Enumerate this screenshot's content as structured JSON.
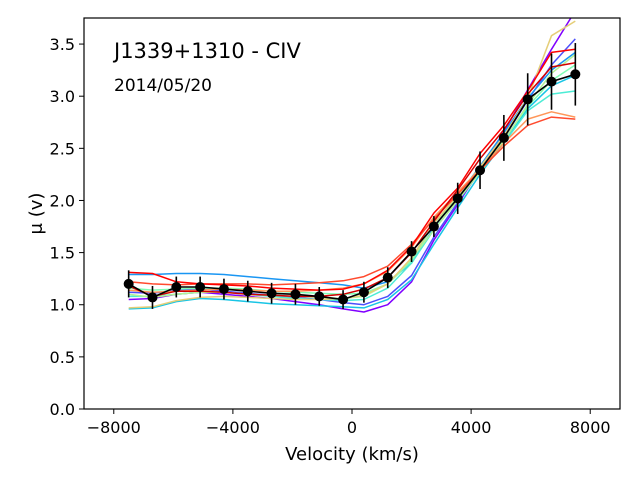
{
  "chart_data": {
    "type": "line",
    "title": "J1339+1310 - CIV",
    "subtitle": "2014/05/20",
    "xlabel": "Velocity (km/s)",
    "ylabel": "μ (v)",
    "xlim": [
      -9000,
      9000
    ],
    "ylim": [
      0.0,
      3.75
    ],
    "xticks": [
      -8000,
      -4000,
      0,
      4000,
      8000
    ],
    "xtick_labels": [
      "−8000",
      "−4000",
      "0",
      "4000",
      "8000"
    ],
    "yticks": [
      0.0,
      0.5,
      1.0,
      1.5,
      2.0,
      2.5,
      3.0,
      3.5
    ],
    "ytick_labels": [
      "0.0",
      "0.5",
      "1.0",
      "1.5",
      "2.0",
      "2.5",
      "3.0",
      "3.5"
    ],
    "grid": false,
    "colors": {
      "mean": "#000000",
      "palette": [
        "#8000ff",
        "#4b4ffc",
        "#1996f3",
        "#18c5e5",
        "#4cecd5",
        "#80feb3",
        "#b3f196",
        "#e5ce78",
        "#ff9659",
        "#ff4a2e",
        "#ff0000",
        "#d20000"
      ]
    },
    "x": [
      -7500,
      -6700,
      -5900,
      -5100,
      -4300,
      -3500,
      -2700,
      -1900,
      -1100,
      -300,
      400,
      1200,
      2000,
      2750,
      3550,
      4300,
      5100,
      5900,
      6700,
      7500
    ],
    "mean": {
      "values": [
        1.2,
        1.07,
        1.17,
        1.17,
        1.15,
        1.13,
        1.11,
        1.1,
        1.08,
        1.05,
        1.12,
        1.26,
        1.51,
        1.75,
        2.02,
        2.29,
        2.6,
        2.97,
        3.14,
        3.21
      ],
      "errors": [
        0.13,
        0.11,
        0.1,
        0.1,
        0.1,
        0.1,
        0.1,
        0.1,
        0.09,
        0.09,
        0.1,
        0.1,
        0.1,
        0.1,
        0.15,
        0.18,
        0.22,
        0.25,
        0.27,
        0.3
      ]
    },
    "series": [
      {
        "values": [
          1.05,
          1.06,
          1.1,
          1.12,
          1.1,
          1.08,
          1.06,
          1.03,
          1.0,
          0.96,
          0.93,
          1.0,
          1.22,
          1.62,
          1.96,
          2.3,
          2.66,
          3.06,
          3.45,
          3.82
        ]
      },
      {
        "values": [
          1.12,
          1.11,
          1.14,
          1.15,
          1.13,
          1.11,
          1.09,
          1.07,
          1.05,
          1.02,
          1.0,
          1.08,
          1.28,
          1.65,
          1.98,
          2.28,
          2.6,
          2.96,
          3.3,
          3.55
        ]
      },
      {
        "values": [
          1.29,
          1.29,
          1.3,
          1.3,
          1.29,
          1.27,
          1.25,
          1.23,
          1.21,
          1.19,
          1.16,
          1.22,
          1.4,
          1.74,
          2.04,
          2.33,
          2.65,
          2.98,
          3.25,
          3.42
        ]
      },
      {
        "values": [
          0.96,
          0.97,
          1.03,
          1.06,
          1.05,
          1.03,
          1.01,
          1.0,
          0.99,
          0.98,
          0.97,
          1.05,
          1.24,
          1.58,
          1.93,
          2.25,
          2.56,
          2.88,
          3.1,
          3.2
        ]
      },
      {
        "values": [
          1.08,
          1.08,
          1.1,
          1.12,
          1.12,
          1.1,
          1.08,
          1.06,
          1.05,
          1.04,
          1.05,
          1.16,
          1.4,
          1.72,
          2.0,
          2.28,
          2.55,
          2.86,
          3.02,
          3.05
        ]
      },
      {
        "values": [
          1.16,
          1.14,
          1.15,
          1.16,
          1.16,
          1.15,
          1.13,
          1.12,
          1.11,
          1.1,
          1.11,
          1.2,
          1.42,
          1.78,
          2.03,
          2.3,
          2.58,
          2.9,
          3.15,
          3.3
        ]
      },
      {
        "values": [
          1.1,
          1.07,
          1.1,
          1.12,
          1.12,
          1.1,
          1.09,
          1.08,
          1.07,
          1.06,
          1.08,
          1.2,
          1.44,
          1.72,
          2.0,
          2.27,
          2.57,
          2.92,
          3.22,
          3.4
        ]
      },
      {
        "values": [
          0.97,
          0.98,
          1.04,
          1.07,
          1.08,
          1.07,
          1.06,
          1.05,
          1.05,
          1.06,
          1.09,
          1.2,
          1.45,
          1.78,
          2.05,
          2.32,
          2.62,
          2.98,
          3.58,
          3.72
        ]
      },
      {
        "values": [
          1.14,
          1.12,
          1.13,
          1.14,
          1.15,
          1.14,
          1.13,
          1.13,
          1.14,
          1.16,
          1.2,
          1.32,
          1.55,
          1.84,
          2.08,
          2.3,
          2.55,
          2.78,
          2.85,
          2.8
        ]
      },
      {
        "values": [
          1.22,
          1.2,
          1.19,
          1.2,
          1.2,
          1.2,
          1.19,
          1.2,
          1.21,
          1.23,
          1.27,
          1.37,
          1.58,
          1.82,
          2.06,
          2.29,
          2.52,
          2.72,
          2.8,
          2.78
        ]
      },
      {
        "values": [
          1.31,
          1.3,
          1.22,
          1.2,
          1.19,
          1.18,
          1.16,
          1.15,
          1.14,
          1.15,
          1.2,
          1.33,
          1.56,
          1.88,
          2.12,
          2.45,
          2.72,
          3.05,
          3.42,
          3.45
        ]
      },
      {
        "values": [
          1.18,
          1.08,
          1.13,
          1.13,
          1.12,
          1.1,
          1.09,
          1.08,
          1.08,
          1.1,
          1.15,
          1.26,
          1.5,
          1.8,
          2.1,
          2.4,
          2.68,
          3.02,
          3.28,
          3.32
        ]
      }
    ]
  }
}
